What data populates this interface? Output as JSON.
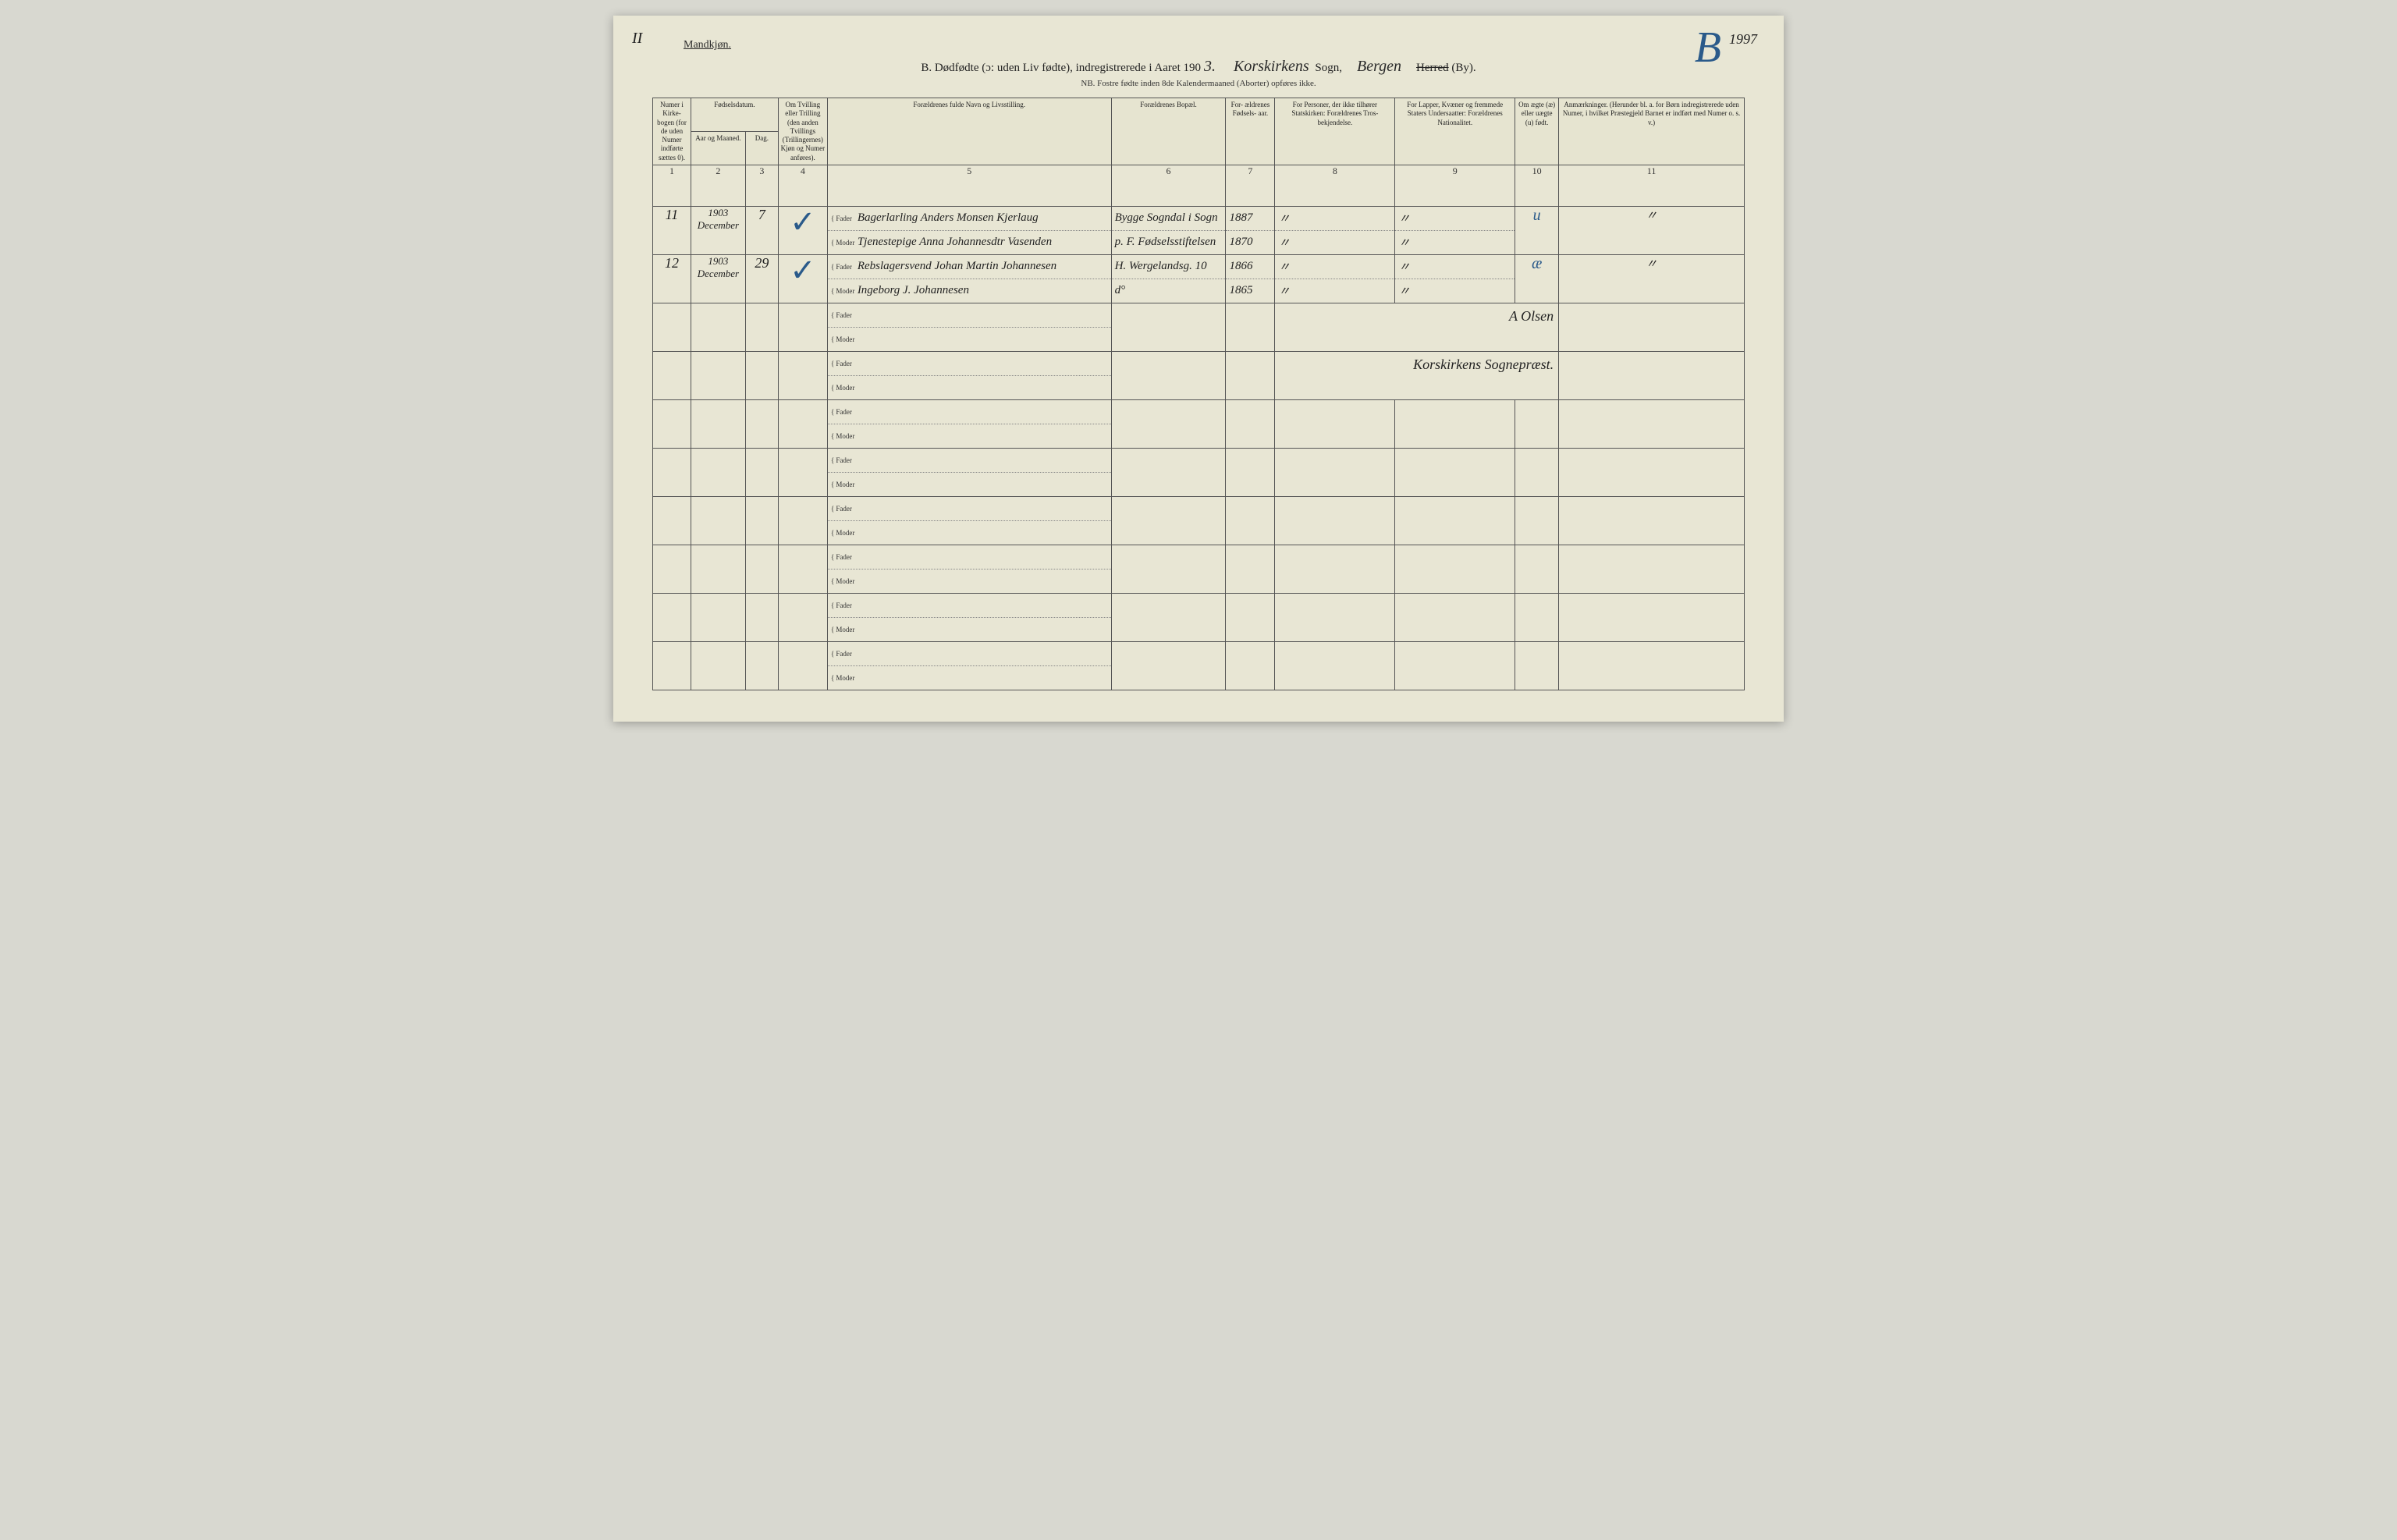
{
  "corner_marks": {
    "top_left": "II",
    "top_right_year": "1997",
    "big_letter": "B"
  },
  "header": {
    "gender_heading": "Mandkjøn.",
    "title_prefix": "B.  Dødfødte (ɔ: uden Liv fødte), indregistrerede i Aaret 190",
    "year_suffix": "3.",
    "parish_handwritten": "Korskirkens",
    "parish_printed": "Sogn,",
    "district_handwritten": "Bergen",
    "herred_label": "Herred",
    "by_label": "(By).",
    "subtitle": "NB.  Fostre fødte inden 8de Kalendermaaned (Aborter) opføres ikke."
  },
  "columns": {
    "c1": "Numer i Kirke- bogen (for de uden Numer indførte sættes 0).",
    "c2a": "Fødselsdatum.",
    "c2a_sub_year": "Aar og Maaned.",
    "c2a_sub_day": "Dag.",
    "c4": "Om Tvilling eller Trilling (den anden Tvillings (Trillingernes) Kjøn og Numer anføres).",
    "c5": "Forældrenes fulde Navn og Livsstilling.",
    "c6": "Forældrenes Bopæl.",
    "c7": "For- ældrenes Fødsels- aar.",
    "c8": "For Personer, der ikke tilhører Statskirken: Forældrenes Tros- bekjendelse.",
    "c9": "For Lapper, Kvæner og fremmede Staters Undersaatter: Forældrenes Nationalitet.",
    "c10": "Om ægte (æ) eller uægte (u) født.",
    "c11": "Anmærkninger. (Herunder bl. a. for Børn indregistrerede uden Numer, i hvilket Præstegjeld Barnet er indført med Numer o. s. v.)",
    "nums": [
      "1",
      "2",
      "3",
      "4",
      "5",
      "6",
      "7",
      "8",
      "9",
      "10",
      "11"
    ]
  },
  "role_labels": {
    "father": "Fader",
    "mother": "Moder"
  },
  "rows": [
    {
      "register_no": "11",
      "year_month": "1903 December",
      "day": "7",
      "twin_mark": "✓",
      "father_name": "Bagerlarling Anders Monsen Kjerlaug",
      "mother_name": "Tjenestepige Anna Johannesdtr Vasenden",
      "father_residence": "Bygge Sogndal i Sogn",
      "mother_residence": "p. F. Fødselsstiftelsen",
      "father_birthyear": "1887",
      "mother_birthyear": "1870",
      "c8": "〃",
      "c9": "〃",
      "legitimacy": "u",
      "remark": "〃"
    },
    {
      "register_no": "12",
      "year_month": "1903 December",
      "day": "29",
      "twin_mark": "✓",
      "father_name": "Rebslagersvend Johan Martin Johannesen",
      "mother_name": "Ingeborg J. Johannesen",
      "father_residence": "H. Wergelandsg. 10",
      "mother_residence": "d°",
      "father_birthyear": "1866",
      "mother_birthyear": "1865",
      "c8": "〃",
      "c9": "〃",
      "legitimacy": "æ",
      "remark": "〃"
    }
  ],
  "signature": {
    "line1": "A Olsen",
    "line2": "Korskirkens Sognepræst."
  },
  "colors": {
    "paper": "#e8e6d4",
    "ink": "#222222",
    "blue_mark": "#2a5a8a",
    "border": "#555555"
  }
}
